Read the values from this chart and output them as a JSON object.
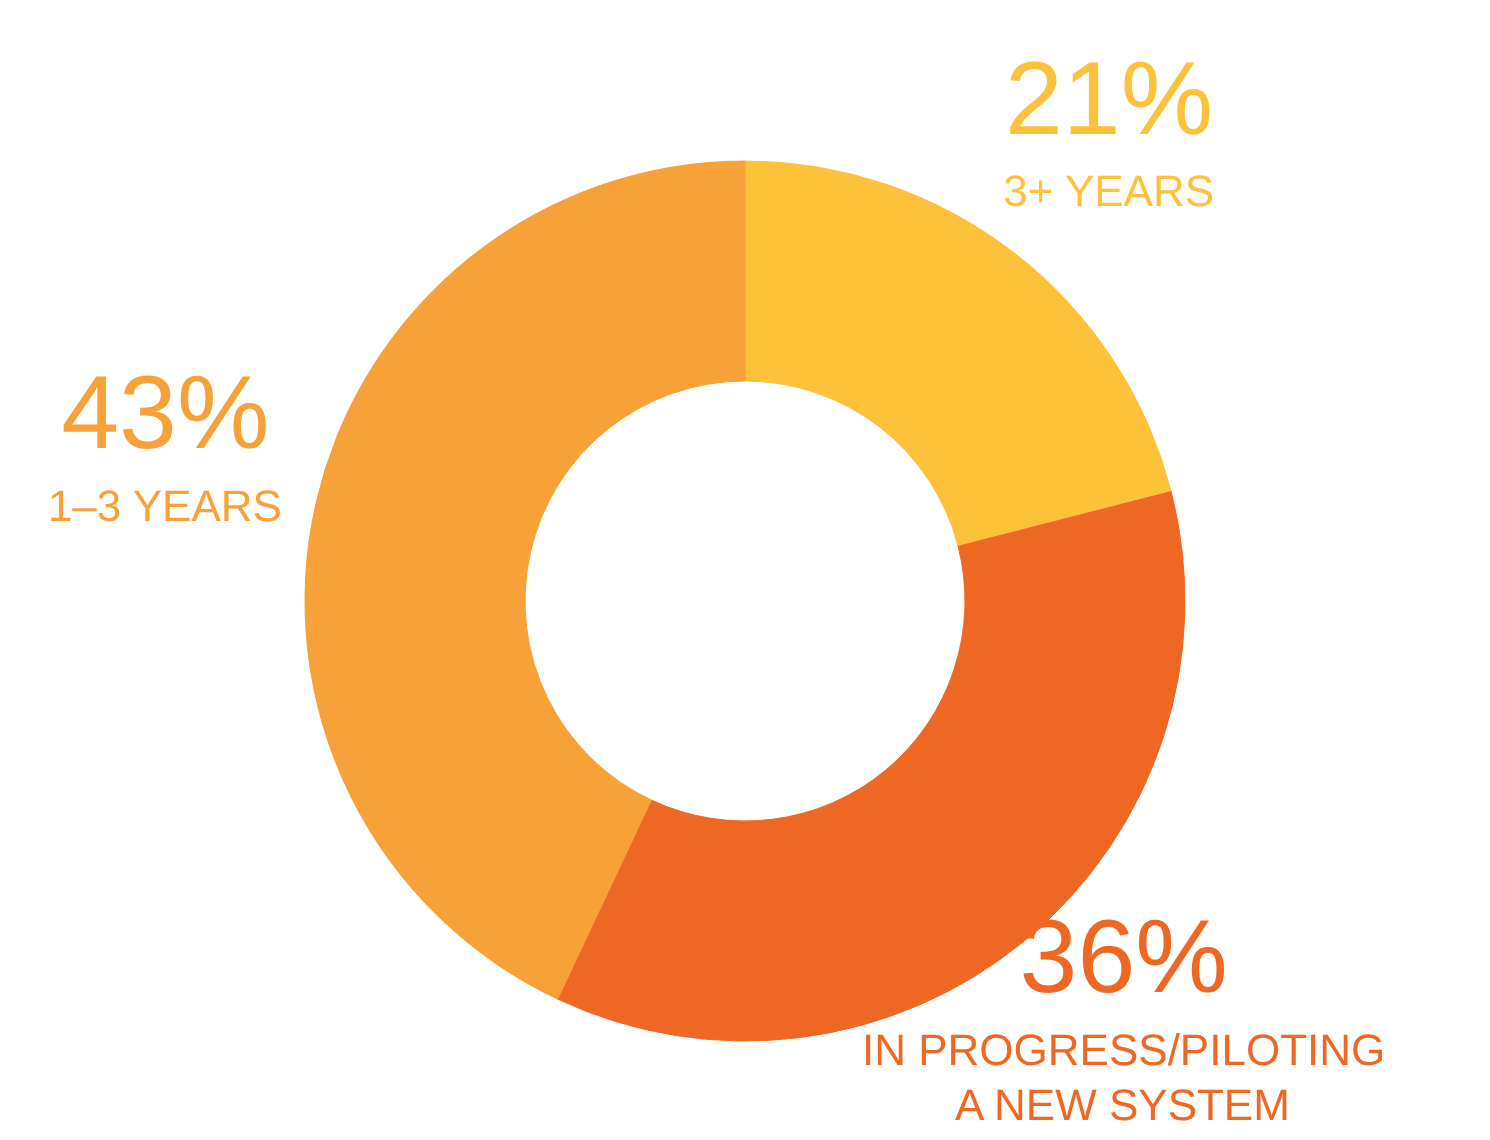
{
  "chart_data": {
    "type": "donut",
    "categories": [
      "3+ YEARS",
      "IN PROGRESS/PILOTING A NEW SYSTEM",
      "1–3 YEARS"
    ],
    "values": [
      21,
      36,
      43
    ],
    "colors": [
      "#fdc13a",
      "#ee6824",
      "#f7a139"
    ],
    "value_labels": [
      "21%",
      "36%",
      "43%"
    ]
  }
}
